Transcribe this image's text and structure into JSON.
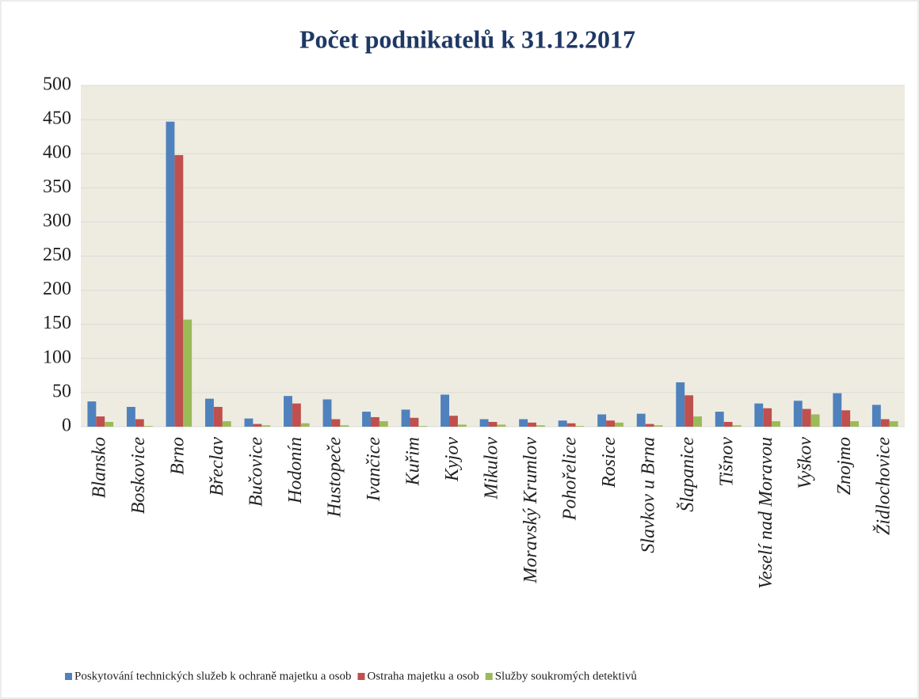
{
  "chart_data": {
    "type": "bar",
    "title": "Počet podnikatelů k 31.12.2017",
    "categories": [
      "Blansko",
      "Boskovice",
      "Brno",
      "Břeclav",
      "Bučovice",
      "Hodonín",
      "Hustopeče",
      "Ivančice",
      "Kuřim",
      "Kyjov",
      "Mikulov",
      "Moravský Krumlov",
      "Pohořelice",
      "Rosice",
      "Slavkov u Brna",
      "Šlapanice",
      "Tišnov",
      "Veselí nad Moravou",
      "Vyškov",
      "Znojmo",
      "Židlochovice"
    ],
    "series": [
      {
        "name": "Poskytování technických služeb k ochraně majetku a osob",
        "color": "#4f81bd",
        "values": [
          37,
          29,
          447,
          41,
          12,
          45,
          40,
          22,
          25,
          47,
          11,
          11,
          9,
          18,
          19,
          65,
          22,
          34,
          38,
          49,
          32
        ]
      },
      {
        "name": "Ostraha majetku a osob",
        "color": "#c0504d",
        "values": [
          15,
          11,
          398,
          29,
          4,
          34,
          11,
          14,
          13,
          16,
          7,
          6,
          5,
          9,
          4,
          46,
          7,
          27,
          26,
          24,
          11
        ]
      },
      {
        "name": "Služby soukromých detektivů",
        "color": "#9bbb59",
        "values": [
          7,
          1,
          157,
          8,
          2,
          5,
          2,
          8,
          1,
          3,
          3,
          2,
          1,
          6,
          2,
          15,
          2,
          8,
          18,
          8,
          8
        ]
      }
    ],
    "ylim": [
      0,
      500
    ],
    "yticks": [
      0,
      50,
      100,
      150,
      200,
      250,
      300,
      350,
      400,
      450,
      500
    ],
    "grid": true,
    "legend": "bottom"
  }
}
